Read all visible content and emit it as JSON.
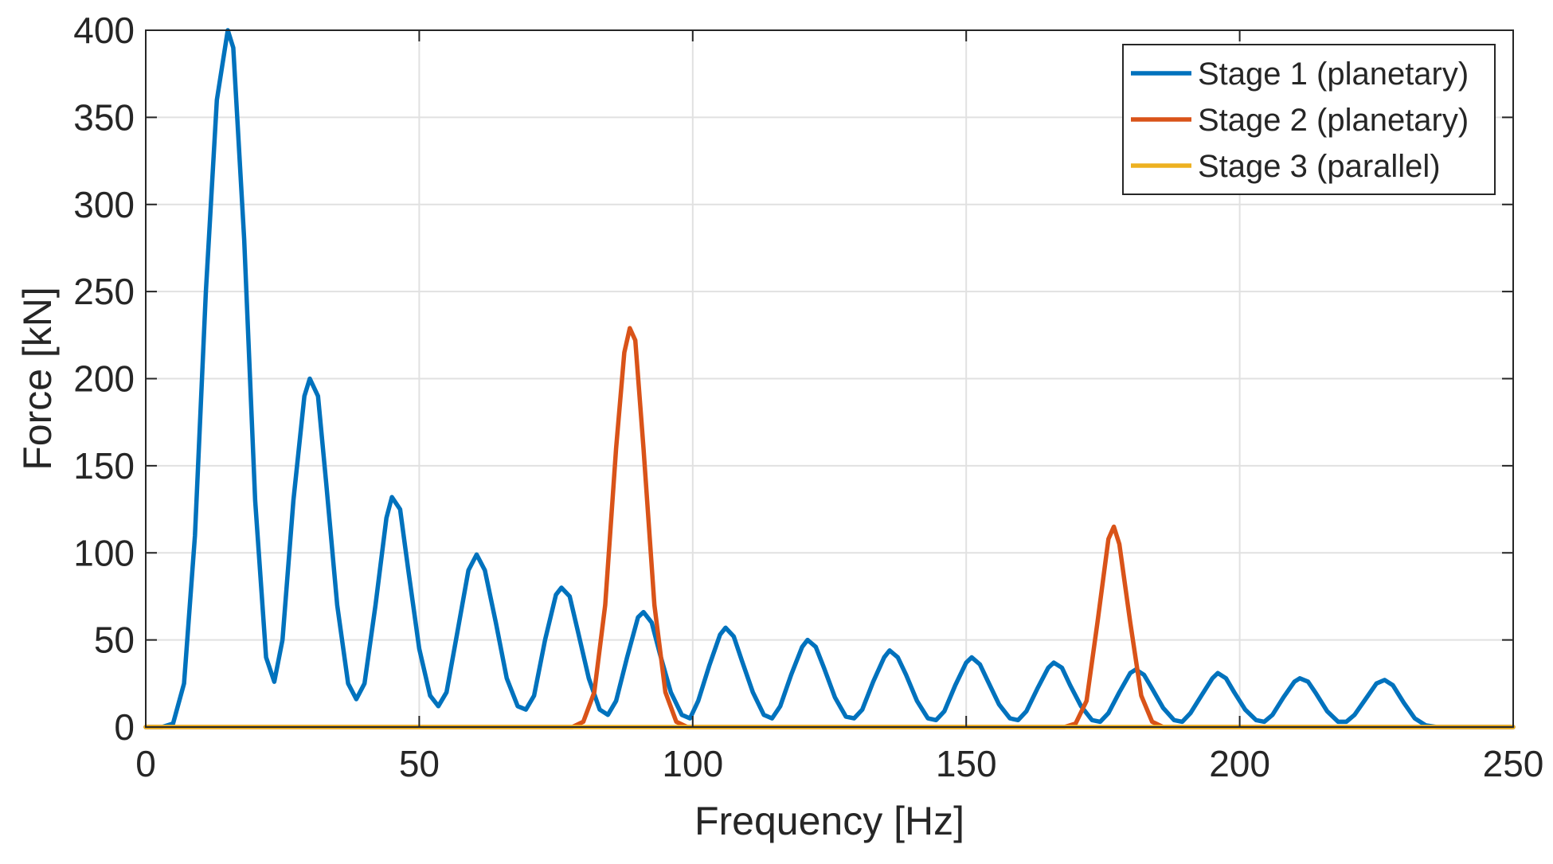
{
  "chart_data": {
    "type": "line",
    "title": "",
    "xlabel": "Frequency [Hz]",
    "ylabel": "Force [kN]",
    "xlim": [
      0,
      250
    ],
    "ylim": [
      0,
      400
    ],
    "xticks": [
      0,
      50,
      100,
      150,
      200,
      250
    ],
    "yticks": [
      0,
      50,
      100,
      150,
      200,
      250,
      300,
      350,
      400
    ],
    "xtick_labels": [
      "0",
      "50",
      "100",
      "150",
      "200",
      "250"
    ],
    "ytick_labels": [
      "0",
      "50",
      "100",
      "150",
      "200",
      "250",
      "300",
      "350",
      "400"
    ],
    "grid": true,
    "legend_position": "top-right",
    "series": [
      {
        "name": "Stage 1 (planetary)",
        "color": "#0072BD",
        "points": [
          [
            0,
            0
          ],
          [
            3,
            0
          ],
          [
            5,
            2
          ],
          [
            7,
            25
          ],
          [
            9,
            110
          ],
          [
            11,
            250
          ],
          [
            13,
            360
          ],
          [
            15,
            400
          ],
          [
            16,
            390
          ],
          [
            18,
            280
          ],
          [
            20,
            130
          ],
          [
            22,
            40
          ],
          [
            23.5,
            26
          ],
          [
            25,
            50
          ],
          [
            27,
            130
          ],
          [
            29,
            190
          ],
          [
            30,
            200
          ],
          [
            31.5,
            190
          ],
          [
            33,
            140
          ],
          [
            35,
            70
          ],
          [
            37,
            25
          ],
          [
            38.5,
            16
          ],
          [
            40,
            25
          ],
          [
            42,
            70
          ],
          [
            44,
            120
          ],
          [
            45,
            132
          ],
          [
            46.5,
            125
          ],
          [
            48,
            90
          ],
          [
            50,
            45
          ],
          [
            52,
            18
          ],
          [
            53.5,
            12
          ],
          [
            55,
            20
          ],
          [
            57,
            55
          ],
          [
            59,
            90
          ],
          [
            60.5,
            99
          ],
          [
            62,
            90
          ],
          [
            64,
            60
          ],
          [
            66,
            28
          ],
          [
            68,
            12
          ],
          [
            69.5,
            10
          ],
          [
            71,
            18
          ],
          [
            73,
            50
          ],
          [
            75,
            76
          ],
          [
            76,
            80
          ],
          [
            77.5,
            75
          ],
          [
            79,
            55
          ],
          [
            81,
            28
          ],
          [
            83,
            10
          ],
          [
            84.5,
            7
          ],
          [
            86,
            15
          ],
          [
            88,
            40
          ],
          [
            90,
            63
          ],
          [
            91,
            66
          ],
          [
            92.5,
            60
          ],
          [
            94,
            42
          ],
          [
            96,
            20
          ],
          [
            98,
            7
          ],
          [
            99.5,
            5
          ],
          [
            101,
            15
          ],
          [
            103,
            35
          ],
          [
            105,
            53
          ],
          [
            106,
            57
          ],
          [
            107.5,
            52
          ],
          [
            109,
            38
          ],
          [
            111,
            20
          ],
          [
            113,
            7
          ],
          [
            114.5,
            5
          ],
          [
            116,
            12
          ],
          [
            118,
            30
          ],
          [
            120,
            46
          ],
          [
            121,
            50
          ],
          [
            122.5,
            46
          ],
          [
            124,
            34
          ],
          [
            126,
            17
          ],
          [
            128,
            6
          ],
          [
            129.5,
            5
          ],
          [
            131,
            10
          ],
          [
            133,
            26
          ],
          [
            135,
            40
          ],
          [
            136,
            44
          ],
          [
            137.5,
            40
          ],
          [
            139,
            30
          ],
          [
            141,
            15
          ],
          [
            143,
            5
          ],
          [
            144.5,
            4
          ],
          [
            146,
            9
          ],
          [
            148,
            24
          ],
          [
            150,
            37
          ],
          [
            151,
            40
          ],
          [
            152.5,
            36
          ],
          [
            154,
            26
          ],
          [
            156,
            13
          ],
          [
            158,
            5
          ],
          [
            159.5,
            4
          ],
          [
            161,
            9
          ],
          [
            163,
            22
          ],
          [
            165,
            34
          ],
          [
            166,
            37
          ],
          [
            167.5,
            34
          ],
          [
            169,
            24
          ],
          [
            171,
            12
          ],
          [
            173,
            4
          ],
          [
            174.5,
            3
          ],
          [
            176,
            8
          ],
          [
            178,
            20
          ],
          [
            180,
            31
          ],
          [
            181,
            33
          ],
          [
            182.5,
            30
          ],
          [
            184,
            22
          ],
          [
            186,
            11
          ],
          [
            188,
            4
          ],
          [
            189.5,
            3
          ],
          [
            191,
            8
          ],
          [
            193,
            18
          ],
          [
            195,
            28
          ],
          [
            196,
            31
          ],
          [
            197.5,
            28
          ],
          [
            199,
            20
          ],
          [
            201,
            10
          ],
          [
            203,
            4
          ],
          [
            204.5,
            3
          ],
          [
            206,
            7
          ],
          [
            208,
            17
          ],
          [
            210,
            26
          ],
          [
            211,
            28
          ],
          [
            212.5,
            26
          ],
          [
            214,
            19
          ],
          [
            216,
            9
          ],
          [
            218,
            3
          ],
          [
            219.5,
            3
          ],
          [
            221,
            7
          ],
          [
            223,
            16
          ],
          [
            225,
            25
          ],
          [
            226.5,
            27
          ],
          [
            228,
            24
          ],
          [
            230,
            14
          ],
          [
            232,
            5
          ],
          [
            234,
            1
          ],
          [
            236,
            0
          ],
          [
            250,
            0
          ]
        ]
      },
      {
        "name": "Stage 2 (planetary)",
        "color": "#D95319",
        "points": [
          [
            0,
            0
          ],
          [
            78,
            0
          ],
          [
            80,
            3
          ],
          [
            82,
            20
          ],
          [
            84,
            70
          ],
          [
            86,
            160
          ],
          [
            87.5,
            215
          ],
          [
            88.5,
            229
          ],
          [
            89.5,
            222
          ],
          [
            91,
            160
          ],
          [
            93,
            70
          ],
          [
            95,
            20
          ],
          [
            97,
            3
          ],
          [
            99,
            0
          ],
          [
            168,
            0
          ],
          [
            170,
            2
          ],
          [
            172,
            15
          ],
          [
            174,
            60
          ],
          [
            176,
            108
          ],
          [
            177,
            115
          ],
          [
            178,
            105
          ],
          [
            180,
            60
          ],
          [
            182,
            18
          ],
          [
            184,
            3
          ],
          [
            186,
            0
          ],
          [
            250,
            0
          ]
        ]
      },
      {
        "name": "Stage 3 (parallel)",
        "color": "#EDB120",
        "points": [
          [
            0,
            0
          ],
          [
            250,
            0
          ]
        ]
      }
    ]
  }
}
